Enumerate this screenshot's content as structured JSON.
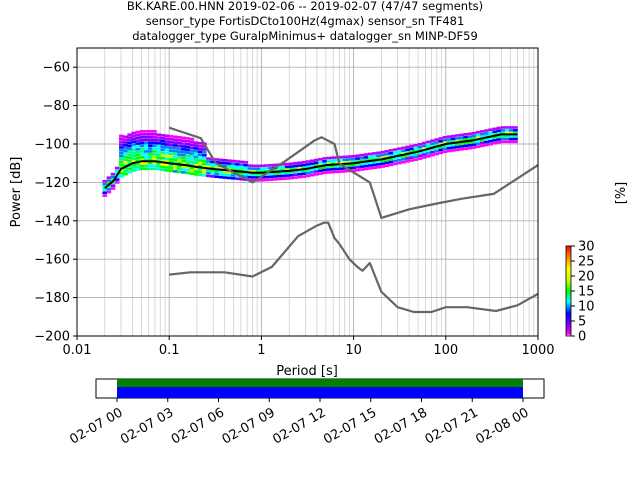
{
  "title_lines": [
    "BK.KARE.00.HNN   2019-02-06 -- 2019-02-07  (47/47 segments)",
    "sensor_type FortisDCto100Hz(4gmax) sensor_sn TF481",
    "datalogger_type GuralpMinimus+ datalogger_sn MINP-DF59"
  ],
  "chart_data": {
    "type": "heatmap",
    "xlabel": "Period [s]",
    "ylabel": "Power [dB]",
    "xscale": "log",
    "xlim": [
      0.01,
      1000
    ],
    "ylim": [
      -200,
      -50
    ],
    "x_ticks": [
      0.01,
      0.1,
      1,
      10,
      100,
      1000
    ],
    "x_tick_labels": [
      "0.01",
      "0.1",
      "1",
      "10",
      "100",
      "1000"
    ],
    "y_ticks": [
      -60,
      -80,
      -100,
      -120,
      -140,
      -160,
      -180,
      -200
    ],
    "y_tick_labels": [
      "−60",
      "−80",
      "−100",
      "−120",
      "−140",
      "−160",
      "−180",
      "−200"
    ],
    "grid": true,
    "colorbar": {
      "label": "[%]",
      "range": [
        0,
        30
      ],
      "ticks": [
        0,
        5,
        10,
        15,
        20,
        25,
        30
      ],
      "tick_labels": [
        "0",
        "5",
        "10",
        "15",
        "20",
        "25",
        "30"
      ]
    },
    "series": [
      {
        "name": "",
        "color": "#000000",
        "points": [
          [
            0.02,
            -123
          ],
          [
            0.025,
            -119
          ],
          [
            0.03,
            -113
          ],
          [
            0.04,
            -110
          ],
          [
            0.05,
            -109
          ],
          [
            0.07,
            -109
          ],
          [
            0.1,
            -110
          ],
          [
            0.15,
            -111
          ],
          [
            0.2,
            -112
          ],
          [
            0.3,
            -113
          ],
          [
            0.5,
            -114
          ],
          [
            0.8,
            -115
          ],
          [
            1,
            -115
          ],
          [
            2,
            -114
          ],
          [
            3,
            -113
          ],
          [
            5,
            -111
          ],
          [
            10,
            -110
          ],
          [
            20,
            -108
          ],
          [
            50,
            -104
          ],
          [
            100,
            -100
          ],
          [
            200,
            -98
          ],
          [
            400,
            -95
          ],
          [
            600,
            -95
          ]
        ]
      },
      {
        "name": "",
        "color": "#666666",
        "points": [
          [
            0.1,
            -91.5
          ],
          [
            0.22,
            -97
          ],
          [
            0.32,
            -110
          ],
          [
            0.8,
            -120
          ],
          [
            1.8,
            -109
          ],
          [
            3.8,
            -98
          ],
          [
            4.5,
            -96.5
          ],
          [
            6.2,
            -100
          ],
          [
            7,
            -110
          ],
          [
            8,
            -112
          ],
          [
            15,
            -120
          ],
          [
            20,
            -138.5
          ],
          [
            40,
            -134
          ],
          [
            80,
            -131
          ],
          [
            150,
            -128.5
          ],
          [
            330,
            -126
          ],
          [
            1000,
            -111
          ]
        ]
      },
      {
        "name": "",
        "color": "#666666",
        "points": [
          [
            0.1,
            -168
          ],
          [
            0.17,
            -166.8
          ],
          [
            0.4,
            -166.8
          ],
          [
            0.8,
            -169
          ],
          [
            1.3,
            -164
          ],
          [
            2.5,
            -148
          ],
          [
            4,
            -142.5
          ],
          [
            4.8,
            -141
          ],
          [
            5.3,
            -141
          ],
          [
            6.2,
            -149
          ],
          [
            7,
            -152
          ],
          [
            9,
            -160
          ],
          [
            11,
            -164
          ],
          [
            12.5,
            -166
          ],
          [
            15,
            -162
          ],
          [
            20,
            -177
          ],
          [
            30,
            -185
          ],
          [
            45,
            -187.5
          ],
          [
            70,
            -187.5
          ],
          [
            100,
            -185
          ],
          [
            170,
            -185
          ],
          [
            350,
            -187
          ],
          [
            600,
            -184
          ],
          [
            1000,
            -178
          ]
        ]
      }
    ],
    "time_axis": {
      "tick_labels": [
        "02-07 00",
        "02-07 03",
        "02-07 06",
        "02-07 09",
        "02-07 12",
        "02-07 15",
        "02-07 18",
        "02-07 21",
        "02-08 00"
      ],
      "coverage_colors": [
        "#008000",
        "#0000ff"
      ]
    }
  }
}
